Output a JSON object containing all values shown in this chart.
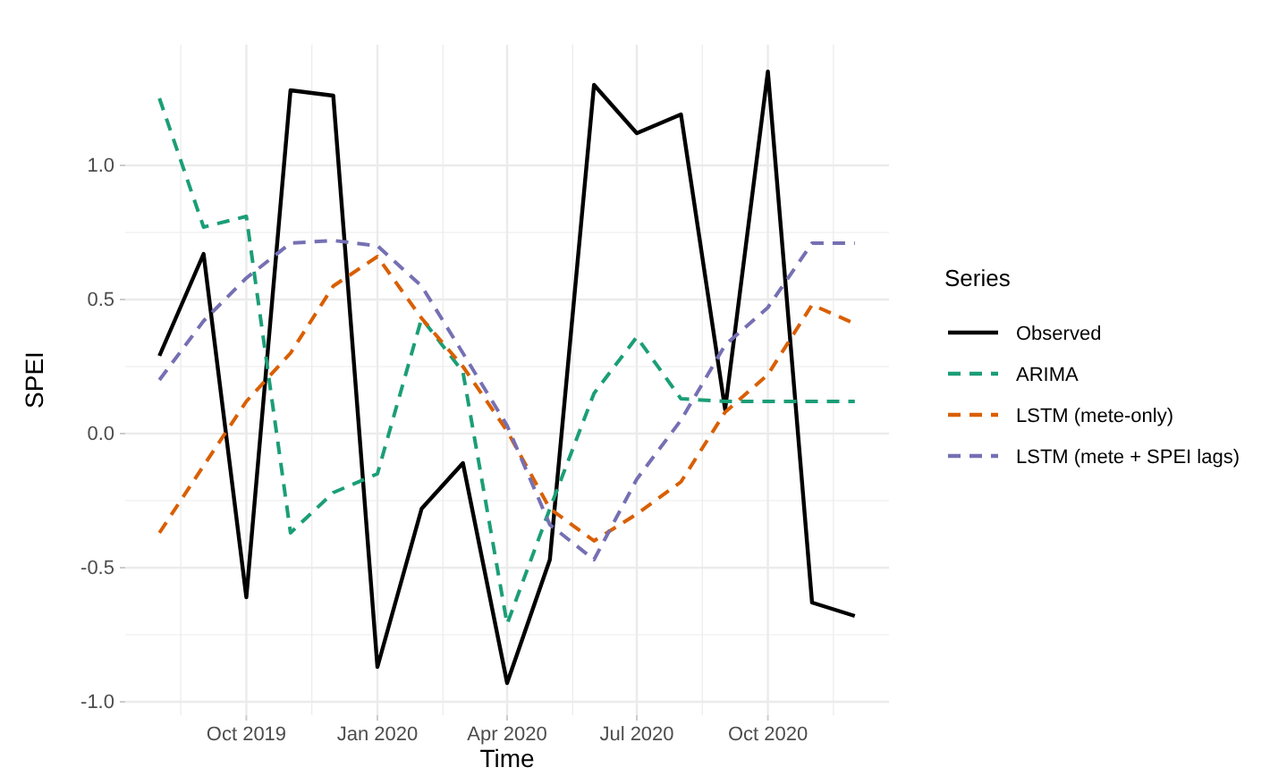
{
  "chart_data": {
    "type": "line",
    "xlabel": "Time",
    "ylabel": "SPEI",
    "legend_title": "Series",
    "legend": "right",
    "grid": true,
    "x": [
      "2019-08-01",
      "2019-09-01",
      "2019-10-01",
      "2019-11-01",
      "2019-12-01",
      "2020-01-01",
      "2020-02-01",
      "2020-03-01",
      "2020-04-01",
      "2020-05-01",
      "2020-06-01",
      "2020-07-01",
      "2020-08-01",
      "2020-09-01",
      "2020-10-01",
      "2020-11-01",
      "2020-12-01"
    ],
    "xlim": [
      "2019-07-08",
      "2020-12-25"
    ],
    "xticks": [
      {
        "value": "2019-10-01",
        "label": "Oct 2019"
      },
      {
        "value": "2020-01-01",
        "label": "Jan 2020"
      },
      {
        "value": "2020-04-01",
        "label": "Apr 2020"
      },
      {
        "value": "2020-07-01",
        "label": "Jul 2020"
      },
      {
        "value": "2020-10-01",
        "label": "Oct 2020"
      }
    ],
    "ylim": [
      -1.05,
      1.45
    ],
    "yticks": [
      {
        "value": -1,
        "label": "-1.0"
      },
      {
        "value": -0.5,
        "label": "-0.5"
      },
      {
        "value": 0,
        "label": "0.0"
      },
      {
        "value": 0.5,
        "label": "0.5"
      },
      {
        "value": 1,
        "label": "1.0"
      }
    ],
    "series": [
      {
        "name": "Observed",
        "color": "#000000",
        "line_style": "solid",
        "values": [
          0.29,
          0.67,
          -0.61,
          1.28,
          1.26,
          -0.87,
          -0.28,
          -0.11,
          -0.93,
          -0.47,
          1.3,
          1.12,
          1.19,
          0.09,
          1.35,
          -0.63,
          -0.68
        ]
      },
      {
        "name": "ARIMA",
        "color": "#1b9e77",
        "line_style": "dashed",
        "values": [
          1.25,
          0.77,
          0.81,
          -0.37,
          -0.22,
          -0.15,
          0.43,
          0.23,
          -0.71,
          -0.28,
          0.15,
          0.36,
          0.13,
          0.12,
          0.12,
          0.12,
          0.12
        ]
      },
      {
        "name": "LSTM (mete-only)",
        "color": "#d95f02",
        "line_style": "dashed",
        "values": [
          -0.37,
          -0.12,
          0.12,
          0.3,
          0.55,
          0.66,
          0.43,
          0.25,
          0.01,
          -0.28,
          -0.4,
          -0.3,
          -0.18,
          0.08,
          0.22,
          0.48,
          0.41
        ]
      },
      {
        "name": "LSTM (mete + SPEI lags)",
        "color": "#7570b3",
        "line_style": "dashed",
        "values": [
          0.2,
          0.42,
          0.58,
          0.71,
          0.72,
          0.7,
          0.55,
          0.3,
          0.03,
          -0.34,
          -0.47,
          -0.17,
          0.05,
          0.33,
          0.47,
          0.71,
          0.71
        ]
      }
    ]
  }
}
